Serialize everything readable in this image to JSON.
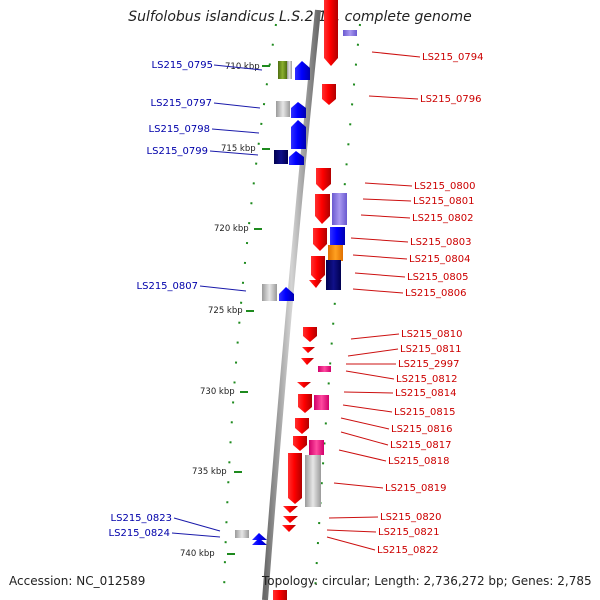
{
  "title": "Sulfolobus islandicus L.S.2.15, complete genome",
  "footer": {
    "accession": "Accession: NC_012589",
    "topology": "Topology: circular; Length: 2,736,272 bp; Genes: 2,785"
  },
  "colors": {
    "forward_gene": "#ee0000",
    "reverse_gene": "#0000ee",
    "forward_label": "#cc0000",
    "reverse_label": "#0000aa",
    "backbone": "#888888",
    "tick": "#228822"
  },
  "scale_labels": [
    "710 kbp",
    "715 kbp",
    "720 kbp",
    "725 kbp",
    "730 kbp",
    "735 kbp",
    "740 kbp"
  ],
  "left_genes": [
    "LS215_0795",
    "LS215_0797",
    "LS215_0798",
    "LS215_0799",
    "LS215_0807",
    "LS215_0823",
    "LS215_0824"
  ],
  "right_genes": [
    "LS215_0794",
    "LS215_0796",
    "LS215_0800",
    "LS215_0801",
    "LS215_0802",
    "LS215_0803",
    "LS215_0804",
    "LS215_0805",
    "LS215_0806",
    "LS215_0810",
    "LS215_0811",
    "LS215_2997",
    "LS215_0812",
    "LS215_0814",
    "LS215_0815",
    "LS215_0816",
    "LS215_0817",
    "LS215_0818",
    "LS215_0819",
    "LS215_0820",
    "LS215_0821",
    "LS215_0822"
  ]
}
